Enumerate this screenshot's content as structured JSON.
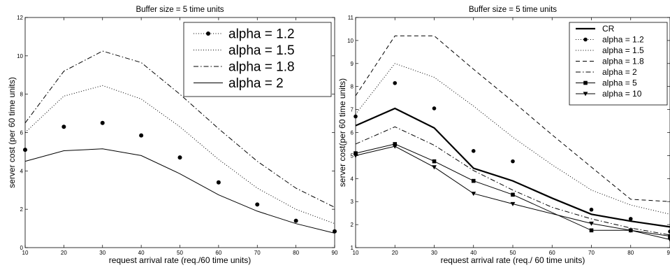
{
  "chart_data": [
    {
      "type": "line",
      "title": "Buffer size = 5 time units",
      "xlabel": "request arrival rate (req./60 time units)",
      "ylabel": "server cost (per 60 time units)",
      "xlim": [
        10,
        90
      ],
      "ylim": [
        0,
        12
      ],
      "x_ticks": [
        "10",
        "20",
        "30",
        "40",
        "50",
        "60",
        "70",
        "80",
        "90"
      ],
      "y_ticks": [
        "0",
        "2",
        "4",
        "6",
        "8",
        "10",
        "12"
      ],
      "x": [
        10,
        20,
        30,
        40,
        50,
        60,
        70,
        80,
        90
      ],
      "legend_position": "top-right",
      "grid": false,
      "series": [
        {
          "name": "alpha = 1.2",
          "style": "dot-marker",
          "values": [
            5.1,
            6.3,
            6.5,
            5.85,
            4.7,
            3.4,
            2.25,
            1.4,
            0.85
          ]
        },
        {
          "name": "alpha = 1.5",
          "style": "dotted",
          "values": [
            6.0,
            7.9,
            8.45,
            7.75,
            6.3,
            4.6,
            3.1,
            2.0,
            1.25
          ]
        },
        {
          "name": "alpha = 1.8",
          "style": "dashdot",
          "values": [
            6.5,
            9.2,
            10.25,
            9.65,
            8.0,
            6.2,
            4.5,
            3.1,
            2.1
          ]
        },
        {
          "name": "alpha = 2",
          "style": "solid",
          "values": [
            4.5,
            5.05,
            5.15,
            4.8,
            3.85,
            2.75,
            1.9,
            1.25,
            0.75
          ]
        }
      ]
    },
    {
      "type": "line",
      "title": "Buffer size = 5 time units",
      "xlabel": "request arrival rate (req./ 60 time units)",
      "ylabel": "server cost(per 60 time units)",
      "xlim": [
        10,
        90
      ],
      "ylim": [
        1,
        11
      ],
      "x_ticks": [
        "10",
        "20",
        "30",
        "40",
        "50",
        "60",
        "70",
        "80",
        "90"
      ],
      "y_ticks": [
        "1",
        "2",
        "3",
        "4",
        "5",
        "6",
        "7",
        "8",
        "9",
        "10",
        "11"
      ],
      "x": [
        10,
        20,
        30,
        40,
        50,
        60,
        70,
        80,
        90
      ],
      "legend_position": "top-right",
      "grid": false,
      "series": [
        {
          "name": "CR",
          "style": "thick",
          "values": [
            6.3,
            7.05,
            6.2,
            4.45,
            3.9,
            3.15,
            2.45,
            2.15,
            1.9
          ]
        },
        {
          "name": "alpha = 1.2",
          "style": "dot-marker",
          "values": [
            6.7,
            8.15,
            7.05,
            5.2,
            4.75,
            null,
            2.65,
            2.25,
            1.7
          ]
        },
        {
          "name": "alpha = 1.5",
          "style": "dotted",
          "values": [
            6.8,
            9.0,
            8.4,
            7.15,
            5.8,
            4.6,
            3.5,
            2.85,
            2.45
          ]
        },
        {
          "name": "alpha = 1.8",
          "style": "dashed",
          "values": [
            7.6,
            10.2,
            10.2,
            8.75,
            7.35,
            5.9,
            4.5,
            3.1,
            3.0
          ]
        },
        {
          "name": "alpha = 2",
          "style": "dashdot",
          "values": [
            5.5,
            6.25,
            5.45,
            4.35,
            3.5,
            2.75,
            2.25,
            1.85,
            1.55
          ]
        },
        {
          "name": "alpha = 5",
          "style": "square-marker",
          "values": [
            5.1,
            5.5,
            4.75,
            3.9,
            3.3,
            null,
            1.75,
            1.75,
            1.5
          ]
        },
        {
          "name": "alpha = 10",
          "style": "triangle-marker",
          "values": [
            5.0,
            5.4,
            4.5,
            3.35,
            2.9,
            null,
            2.05,
            1.75,
            1.35
          ]
        }
      ]
    }
  ]
}
